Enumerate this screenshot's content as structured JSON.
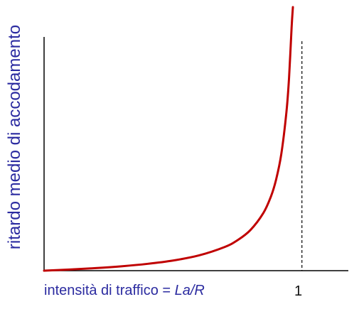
{
  "chart_data": {
    "type": "line",
    "title": "",
    "ylabel": "ritardo medio di accodamento",
    "xlabel": {
      "prefix": "intensità di traffico = ",
      "formula": "La/R"
    },
    "x_ticks": [
      {
        "value": 1,
        "label": "1"
      }
    ],
    "xlim": [
      0,
      1.18
    ],
    "ylim": [
      0,
      26
    ],
    "grid": false,
    "asymptote": {
      "x": 1,
      "style": "dashed"
    },
    "series": [
      {
        "color": "#c00000",
        "x": [
          0,
          0.1,
          0.2,
          0.3,
          0.4,
          0.5,
          0.6,
          0.7,
          0.75,
          0.8,
          0.85,
          0.88,
          0.9,
          0.92,
          0.94,
          0.95,
          0.96,
          0.965
        ],
        "y": [
          0,
          0.11,
          0.25,
          0.43,
          0.67,
          1.0,
          1.5,
          2.33,
          3.0,
          4.0,
          5.67,
          7.33,
          9.0,
          11.5,
          15.67,
          19.0,
          24.0,
          27.6
        ]
      }
    ]
  }
}
